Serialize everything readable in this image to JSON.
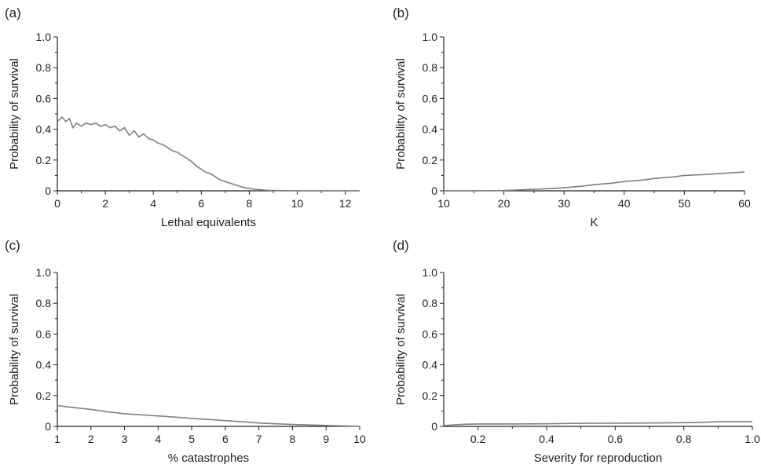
{
  "chart_data": [
    {
      "type": "line",
      "panel_label": "(a)",
      "xlabel": "Lethal equivalents",
      "ylabel": "Probability of survival",
      "xlim": [
        0,
        12.6
      ],
      "ylim": [
        0,
        1.0
      ],
      "xticks": [
        0,
        2,
        4,
        6,
        8,
        10,
        12
      ],
      "xtick_labels": [
        "0",
        "2",
        "4",
        "6",
        "8",
        "10",
        "12"
      ],
      "yticks": [
        0,
        0.2,
        0.4,
        0.6,
        0.8,
        1.0
      ],
      "ytick_labels": [
        "0",
        "0.2",
        "0.4",
        "0.6",
        "0.8",
        "1.0"
      ],
      "series": [
        {
          "color": "#808080",
          "x": [
            0,
            0.2,
            0.35,
            0.5,
            0.65,
            0.8,
            1.0,
            1.2,
            1.4,
            1.6,
            1.8,
            2.0,
            2.2,
            2.4,
            2.6,
            2.8,
            3.0,
            3.2,
            3.4,
            3.6,
            3.8,
            4.0,
            4.2,
            4.4,
            4.6,
            4.8,
            5.0,
            5.2,
            5.4,
            5.6,
            5.8,
            6.0,
            6.2,
            6.4,
            6.6,
            6.8,
            7.0,
            7.2,
            7.4,
            7.6,
            7.8,
            8.0,
            8.2,
            8.4,
            8.6,
            8.8,
            9.0,
            9.5,
            10.0,
            11.0,
            12.6
          ],
          "y": [
            0.45,
            0.48,
            0.45,
            0.47,
            0.41,
            0.44,
            0.42,
            0.44,
            0.43,
            0.44,
            0.42,
            0.43,
            0.41,
            0.42,
            0.39,
            0.41,
            0.36,
            0.39,
            0.35,
            0.37,
            0.34,
            0.33,
            0.31,
            0.3,
            0.28,
            0.26,
            0.25,
            0.23,
            0.21,
            0.19,
            0.16,
            0.14,
            0.12,
            0.11,
            0.09,
            0.07,
            0.06,
            0.05,
            0.04,
            0.03,
            0.02,
            0.015,
            0.01,
            0.008,
            0.005,
            0.003,
            0.002,
            0.001,
            0.0,
            0.0,
            0.0
          ]
        }
      ]
    },
    {
      "type": "line",
      "panel_label": "(b)",
      "xlabel": "K",
      "ylabel": "Probability of survival",
      "xlim": [
        10,
        60
      ],
      "ylim": [
        0,
        1.0
      ],
      "xticks": [
        10,
        20,
        30,
        40,
        50,
        60
      ],
      "xtick_labels": [
        "10",
        "20",
        "30",
        "40",
        "50",
        "60"
      ],
      "yticks": [
        0,
        0.2,
        0.4,
        0.6,
        0.8,
        1.0
      ],
      "ytick_labels": [
        "0",
        "0.2",
        "0.4",
        "0.6",
        "0.8",
        "1.0"
      ],
      "series": [
        {
          "color": "#808080",
          "x": [
            10,
            15,
            20,
            22,
            25,
            28,
            30,
            33,
            35,
            38,
            40,
            43,
            45,
            48,
            50,
            53,
            55,
            58,
            60
          ],
          "y": [
            0.0,
            0.0,
            0.002,
            0.005,
            0.01,
            0.015,
            0.02,
            0.03,
            0.04,
            0.05,
            0.06,
            0.07,
            0.08,
            0.09,
            0.1,
            0.105,
            0.11,
            0.118,
            0.122
          ]
        }
      ]
    },
    {
      "type": "line",
      "panel_label": "(c)",
      "xlabel": "% catastrophes",
      "ylabel": "Probability of survival",
      "xlim": [
        1,
        10
      ],
      "ylim": [
        0,
        1.0
      ],
      "xticks": [
        1,
        2,
        3,
        4,
        5,
        6,
        7,
        8,
        9,
        10
      ],
      "xtick_labels": [
        "1",
        "2",
        "3",
        "4",
        "5",
        "6",
        "7",
        "8",
        "9",
        "10"
      ],
      "yticks": [
        0,
        0.2,
        0.4,
        0.6,
        0.8,
        1.0
      ],
      "ytick_labels": [
        "0",
        "0.2",
        "0.4",
        "0.6",
        "0.8",
        "1.0"
      ],
      "series": [
        {
          "color": "#808080",
          "x": [
            1,
            1.5,
            2,
            2.5,
            3,
            3.5,
            4,
            4.5,
            5,
            5.5,
            6,
            6.5,
            7,
            7.5,
            8,
            8.5,
            9,
            9.5,
            10
          ],
          "y": [
            0.135,
            0.122,
            0.11,
            0.095,
            0.082,
            0.075,
            0.068,
            0.06,
            0.052,
            0.045,
            0.037,
            0.03,
            0.022,
            0.017,
            0.013,
            0.009,
            0.006,
            0.003,
            0.001
          ]
        }
      ]
    },
    {
      "type": "line",
      "panel_label": "(d)",
      "xlabel": "Severity for reproduction",
      "ylabel": "Probability of survival",
      "xlim": [
        0.1,
        1.0
      ],
      "ylim": [
        0,
        1.0
      ],
      "xticks": [
        0.2,
        0.4,
        0.6,
        0.8,
        1.0
      ],
      "xtick_labels": [
        "0.2",
        "0.4",
        "0.6",
        "0.8",
        "1.0"
      ],
      "yticks": [
        0,
        0.2,
        0.4,
        0.6,
        0.8,
        1.0
      ],
      "ytick_labels": [
        "0",
        "0.2",
        "0.4",
        "0.6",
        "0.8",
        "1.0"
      ],
      "series": [
        {
          "color": "#808080",
          "x": [
            0.1,
            0.13,
            0.16,
            0.2,
            0.3,
            0.4,
            0.5,
            0.6,
            0.7,
            0.8,
            0.85,
            0.9,
            0.95,
            1.0
          ],
          "y": [
            0.005,
            0.01,
            0.014,
            0.016,
            0.016,
            0.017,
            0.02,
            0.021,
            0.022,
            0.024,
            0.026,
            0.03,
            0.03,
            0.03
          ]
        }
      ]
    }
  ]
}
